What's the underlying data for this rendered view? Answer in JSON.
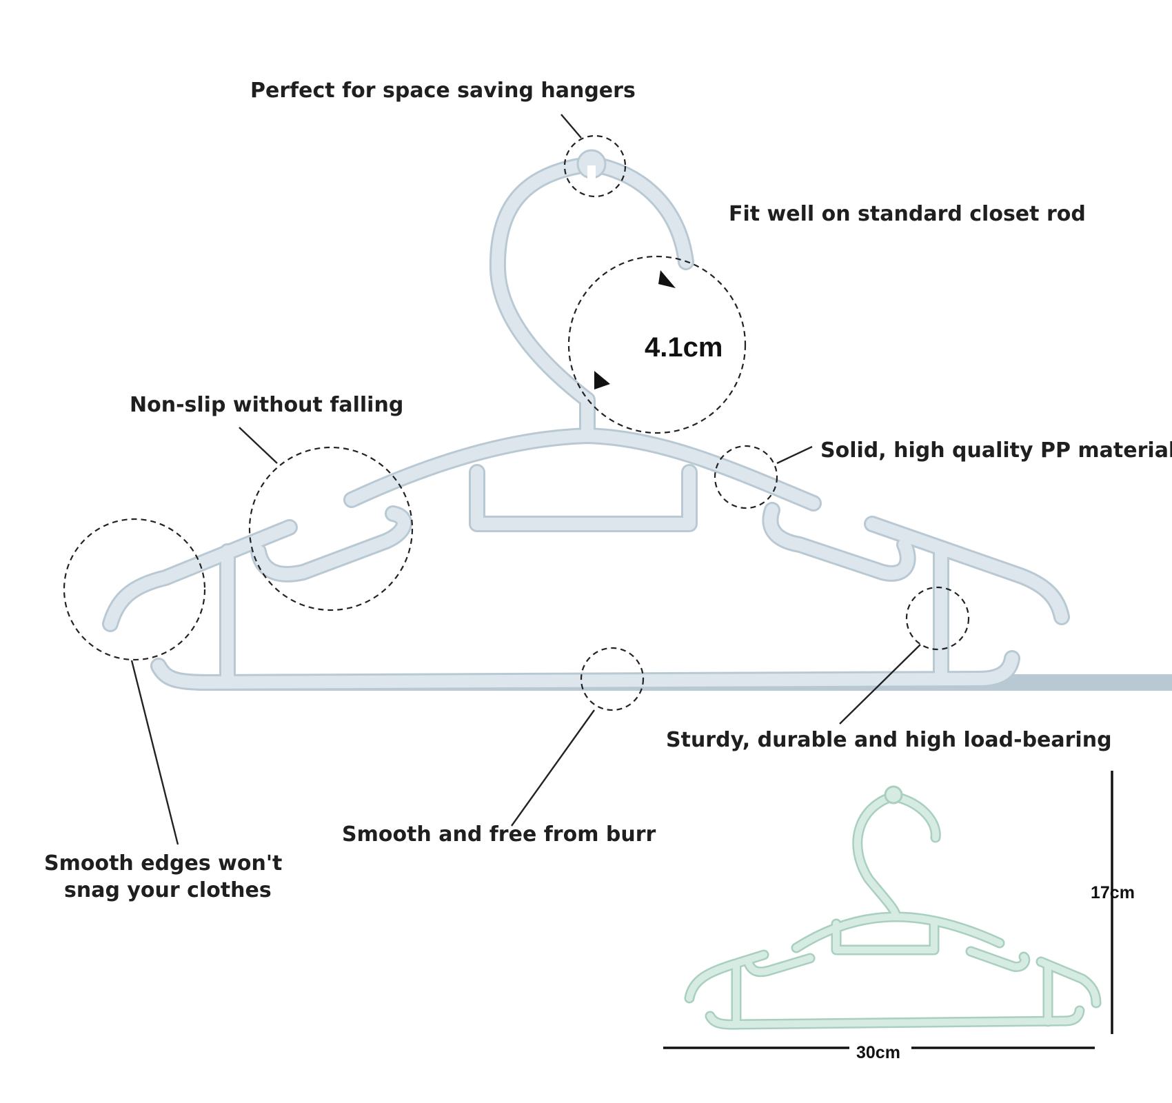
{
  "callouts": {
    "hook_slot": "Perfect for space saving hangers",
    "rod_fit": "Fit well on standard closet rod",
    "hook_size": "4.1cm",
    "non_slip": "Non-slip without falling",
    "material": "Solid, high quality PP material",
    "smooth_edges_line1": "Smooth edges won't",
    "smooth_edges_line2": "snag your clothes",
    "no_burr": "Smooth and free from burr",
    "sturdy": "Sturdy, durable and high load-bearing"
  },
  "dimensions": {
    "height": "17cm",
    "width": "30cm"
  },
  "colors": {
    "hanger_large": "#dde6ec",
    "hanger_large_edge": "#b9c9d3",
    "hanger_small": "#d6ebe2",
    "hanger_small_edge": "#a9cfbf",
    "annotation": "#222222"
  }
}
